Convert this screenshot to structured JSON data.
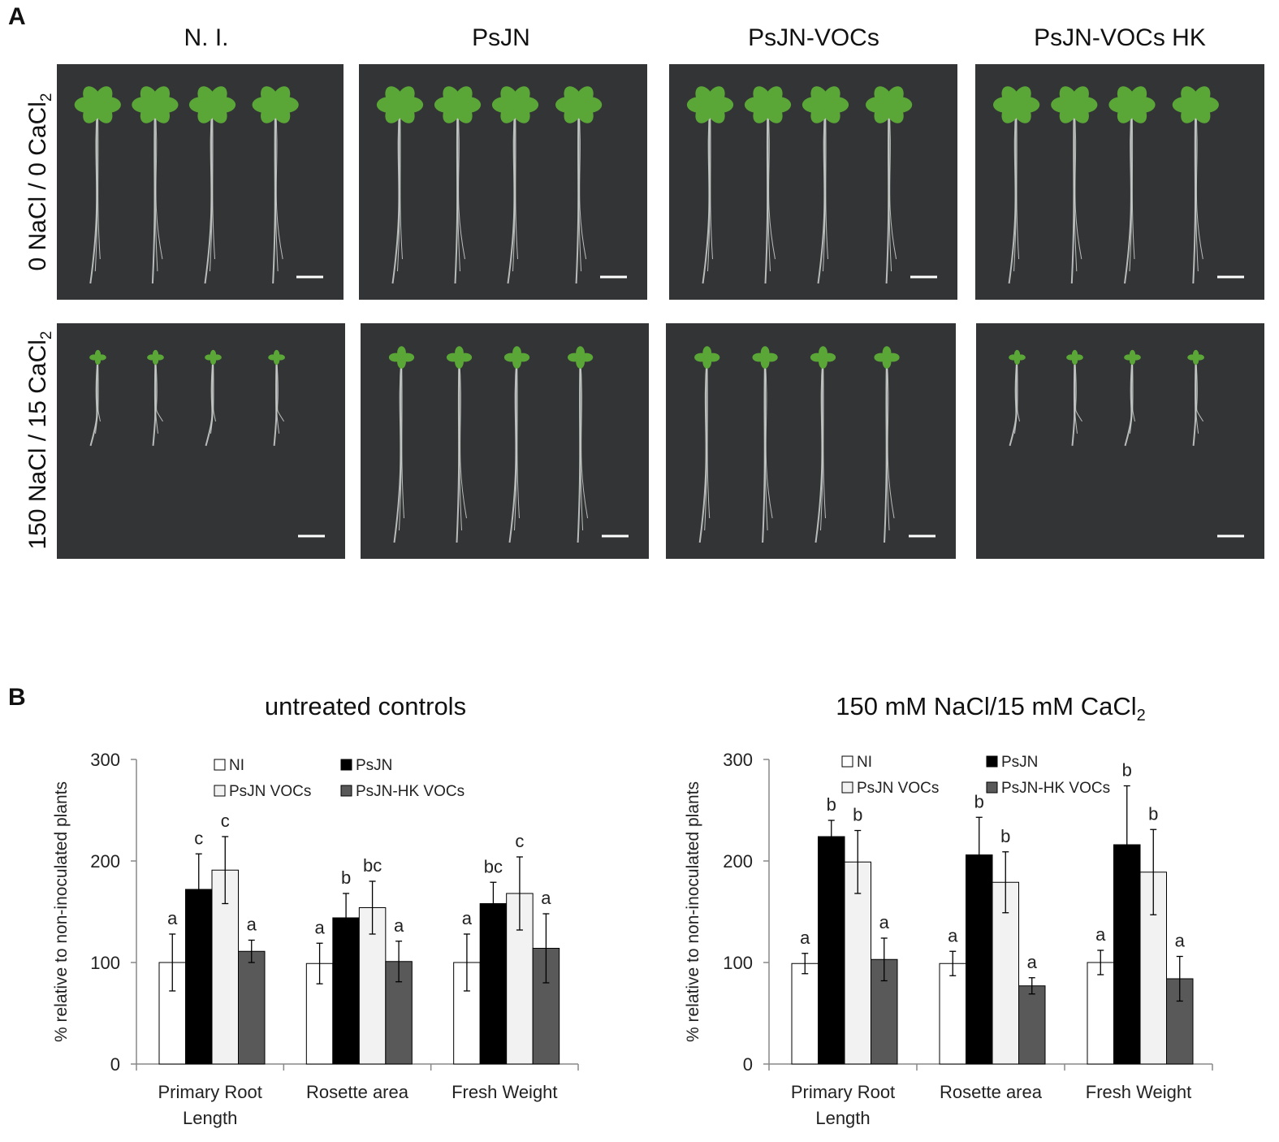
{
  "panel_labels": {
    "a": "A",
    "b": "B"
  },
  "photo_panel": {
    "columns": [
      "N. I.",
      "PsJN",
      "PsJN-VOCs",
      "PsJN-VOCs HK"
    ],
    "rows": [
      {
        "label": "0 NaCl / 0 CaCl",
        "sub": "2"
      },
      {
        "label": "150 NaCl / 15 CaCl",
        "sub": "2"
      }
    ],
    "photo_background": "#333436",
    "leaf_color": "#5aa636",
    "root_color": "#cfd3d0"
  },
  "chart_data": [
    {
      "type": "bar",
      "title": "untreated controls",
      "title_sub": "",
      "ylabel": "% relative to non-inoculated plants",
      "ylim": [
        0,
        300
      ],
      "yticks": [
        0,
        100,
        200,
        300
      ],
      "categories": [
        [
          "Primary Root",
          "Length"
        ],
        [
          "Rosette area"
        ],
        [
          "Fresh Weight"
        ]
      ],
      "legend": "top",
      "series": [
        {
          "name": "NI",
          "color": "#ffffff",
          "values": [
            100,
            99,
            100
          ],
          "errors": [
            28,
            20,
            28
          ],
          "letters": [
            "a",
            "a",
            "a"
          ]
        },
        {
          "name": "PsJN",
          "color": "#000000",
          "values": [
            172,
            144,
            158
          ],
          "errors": [
            35,
            24,
            21
          ],
          "letters": [
            "c",
            "b",
            "bc"
          ]
        },
        {
          "name": "PsJN VOCs",
          "color": "#f2f2f2",
          "values": [
            191,
            154,
            168
          ],
          "errors": [
            33,
            26,
            36
          ],
          "letters": [
            "c",
            "bc",
            "c"
          ]
        },
        {
          "name": "PsJN-HK VOCs",
          "color": "#595959",
          "values": [
            111,
            101,
            114
          ],
          "errors": [
            11,
            20,
            34
          ],
          "letters": [
            "a",
            "a",
            "a"
          ]
        }
      ]
    },
    {
      "type": "bar",
      "title": "150 mM NaCl/15 mM CaCl",
      "title_sub": "2",
      "ylabel": "% relative to non-inoculated plants",
      "ylim": [
        0,
        300
      ],
      "yticks": [
        0,
        100,
        200,
        300
      ],
      "categories": [
        [
          "Primary Root",
          "Length"
        ],
        [
          "Rosette area"
        ],
        [
          "Fresh Weight"
        ]
      ],
      "legend": "top",
      "series": [
        {
          "name": "NI",
          "color": "#ffffff",
          "values": [
            99,
            99,
            100
          ],
          "errors": [
            10,
            12,
            12
          ],
          "letters": [
            "a",
            "a",
            "a"
          ]
        },
        {
          "name": "PsJN",
          "color": "#000000",
          "values": [
            224,
            206,
            216
          ],
          "errors": [
            16,
            37,
            58
          ],
          "letters": [
            "b",
            "b",
            "b"
          ]
        },
        {
          "name": "PsJN VOCs",
          "color": "#f2f2f2",
          "values": [
            199,
            179,
            189
          ],
          "errors": [
            31,
            30,
            42
          ],
          "letters": [
            "b",
            "b",
            "b"
          ]
        },
        {
          "name": "PsJN-HK VOCs",
          "color": "#595959",
          "values": [
            103,
            77,
            84
          ],
          "errors": [
            21,
            8,
            22
          ],
          "letters": [
            "a",
            "a",
            "a"
          ]
        }
      ]
    }
  ]
}
